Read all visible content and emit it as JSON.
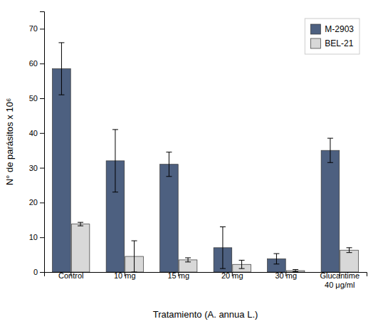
{
  "chart_data": {
    "type": "bar",
    "categories": [
      "Control",
      "10 mg",
      "15 mg",
      "20 mg",
      "30 mg",
      "Glucantime\n40 μg/ml"
    ],
    "series": [
      {
        "name": "M-2903",
        "color": "#4d6080",
        "values": [
          58.5,
          32.0,
          31.0,
          7.0,
          3.8,
          35.0
        ],
        "errors": [
          7.5,
          9.0,
          3.5,
          6.0,
          1.5,
          3.5
        ]
      },
      {
        "name": "BEL-21",
        "color": "#d8d8d8",
        "values": [
          13.8,
          4.5,
          3.5,
          2.2,
          0.4,
          6.3
        ],
        "errors": [
          0.5,
          4.5,
          0.6,
          1.2,
          0.3,
          0.7
        ]
      }
    ],
    "ylim": [
      0,
      75
    ],
    "yticks": [
      0,
      10,
      20,
      30,
      40,
      50,
      60,
      70
    ],
    "ylabel": "N° de parásitos x 10⁶",
    "xlabel": "Tratamiento (A. annua L.)",
    "grid": false,
    "legend": "upper right"
  }
}
